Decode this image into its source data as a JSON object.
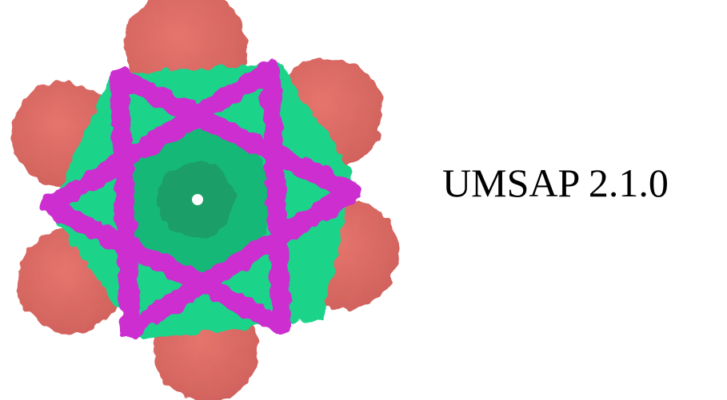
{
  "app": {
    "title": "UMSAP 2.1.0"
  }
}
